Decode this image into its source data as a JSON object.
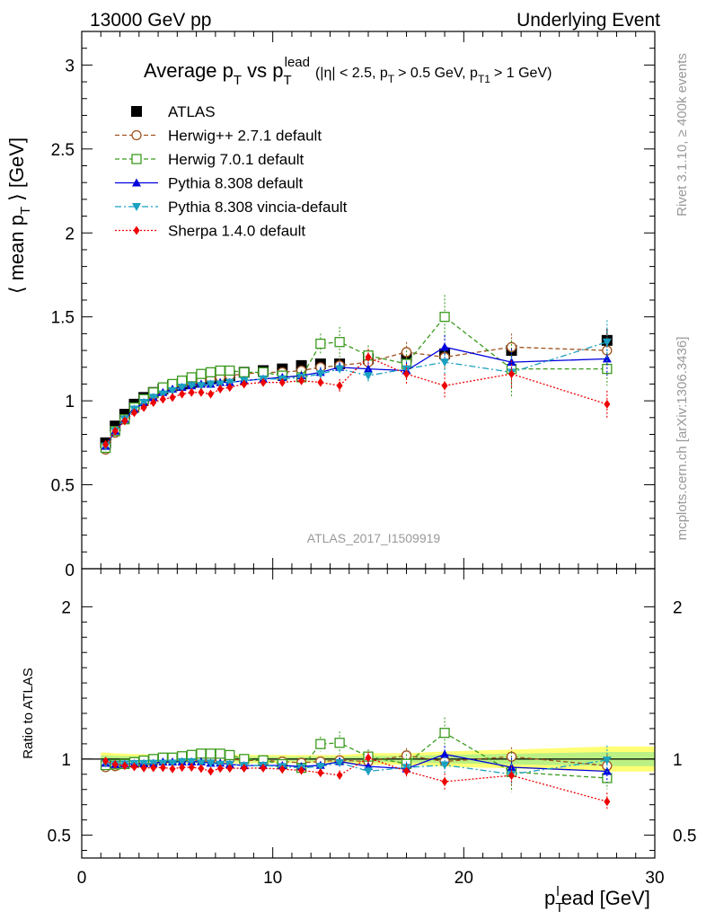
{
  "header": {
    "left": "13000 GeV pp",
    "right": "Underlying Event"
  },
  "side_labels": {
    "rivet": "Rivet 3.1.10, ≥ 400k events",
    "mcplots": "mcplots.cern.ch [arXiv:1306.3436]"
  },
  "colors": {
    "atlas": "#000000",
    "herwigpp": "#a0521e",
    "herwig7": "#3a9a1e",
    "pythia": "#0000dd",
    "vincia": "#1aa0c0",
    "sherpa": "#ee0000",
    "band_outer": "#ffff66",
    "band_inner": "#aaee88",
    "watermark": "#999999"
  },
  "chart_data": [
    {
      "type": "line",
      "title": "Average p_T vs p_T^lead",
      "title_main": "Average p",
      "title_sub1": "T",
      "title_vs": "vs p",
      "title_sub2": "T",
      "title_sup2": "lead",
      "title_cuts": "(|η| < 2.5, p",
      "title_cuts_sub": "T",
      "title_cuts2": "> 0.5 GeV, p",
      "title_cuts2_sub": "T1",
      "title_cuts3": "> 1 GeV)",
      "ylabel_pre": "⟨ mean p",
      "ylabel_sub": "T",
      "ylabel_post": "⟩ [GeV]",
      "watermark": "ATLAS_2017_I1509919",
      "xlim": [
        0,
        30
      ],
      "ylim": [
        0,
        3.2
      ],
      "yticks": [
        0,
        0.5,
        1,
        1.5,
        2,
        2.5,
        3
      ],
      "ytick_labels": [
        "0",
        "0.5",
        "1",
        "1.5",
        "2",
        "2.5",
        "3"
      ],
      "legend": [
        {
          "key": "atlas",
          "label": "ATLAS"
        },
        {
          "key": "herwigpp",
          "label": "Herwig++ 2.7.1 default"
        },
        {
          "key": "herwig7",
          "label": "Herwig 7.0.1 default"
        },
        {
          "key": "pythia",
          "label": "Pythia 8.308 default"
        },
        {
          "key": "vincia",
          "label": "Pythia 8.308 vincia-default"
        },
        {
          "key": "sherpa",
          "label": "Sherpa 1.4.0 default"
        }
      ],
      "x": [
        1.25,
        1.75,
        2.25,
        2.75,
        3.25,
        3.75,
        4.25,
        4.75,
        5.25,
        5.75,
        6.25,
        6.75,
        7.25,
        7.75,
        8.5,
        9.5,
        10.5,
        11.5,
        12.5,
        13.5,
        15,
        17,
        19,
        22.5,
        27.5
      ],
      "series": [
        {
          "key": "atlas",
          "name": "ATLAS",
          "marker": "square",
          "line": "none",
          "values": [
            0.75,
            0.85,
            0.92,
            0.98,
            1.02,
            1.05,
            1.07,
            1.09,
            1.1,
            1.11,
            1.12,
            1.13,
            1.14,
            1.15,
            1.17,
            1.18,
            1.19,
            1.21,
            1.22,
            1.22,
            1.25,
            1.26,
            1.28,
            1.3,
            1.36
          ],
          "errors": [
            0.02,
            0.02,
            0.02,
            0.02,
            0.02,
            0.02,
            0.02,
            0.02,
            0.02,
            0.02,
            0.02,
            0.02,
            0.02,
            0.02,
            0.02,
            0.02,
            0.02,
            0.02,
            0.02,
            0.02,
            0.03,
            0.03,
            0.04,
            0.05,
            0.07
          ]
        },
        {
          "key": "herwigpp",
          "name": "Herwig++ 2.7.1 default",
          "marker": "circle-open",
          "line": "dashed",
          "values": [
            0.71,
            0.81,
            0.89,
            0.95,
            0.99,
            1.03,
            1.06,
            1.08,
            1.1,
            1.11,
            1.12,
            1.13,
            1.14,
            1.15,
            1.16,
            1.17,
            1.17,
            1.18,
            1.2,
            1.21,
            1.23,
            1.29,
            1.26,
            1.32,
            1.3
          ],
          "errors": [
            0.01,
            0.01,
            0.01,
            0.01,
            0.01,
            0.01,
            0.01,
            0.01,
            0.01,
            0.01,
            0.01,
            0.01,
            0.01,
            0.01,
            0.02,
            0.02,
            0.02,
            0.03,
            0.03,
            0.04,
            0.05,
            0.06,
            0.07,
            0.08,
            0.1
          ]
        },
        {
          "key": "herwig7",
          "name": "Herwig 7.0.1 default",
          "marker": "square-open",
          "line": "dashed",
          "values": [
            0.72,
            0.82,
            0.89,
            0.96,
            1.01,
            1.05,
            1.08,
            1.1,
            1.12,
            1.14,
            1.16,
            1.17,
            1.18,
            1.18,
            1.17,
            1.17,
            1.15,
            1.14,
            1.34,
            1.35,
            1.27,
            1.22,
            1.5,
            1.19,
            1.19
          ],
          "errors": [
            0.01,
            0.01,
            0.01,
            0.01,
            0.01,
            0.01,
            0.01,
            0.01,
            0.01,
            0.01,
            0.01,
            0.01,
            0.02,
            0.02,
            0.02,
            0.03,
            0.03,
            0.04,
            0.06,
            0.09,
            0.06,
            0.08,
            0.13,
            0.17,
            0.1
          ]
        },
        {
          "key": "pythia",
          "name": "Pythia 8.308 default",
          "marker": "triangle-up",
          "line": "solid",
          "values": [
            0.73,
            0.82,
            0.89,
            0.95,
            0.99,
            1.02,
            1.05,
            1.07,
            1.08,
            1.09,
            1.1,
            1.1,
            1.11,
            1.11,
            1.12,
            1.13,
            1.14,
            1.15,
            1.17,
            1.2,
            1.19,
            1.18,
            1.32,
            1.23,
            1.25
          ],
          "errors": [
            0.01,
            0.01,
            0.01,
            0.01,
            0.01,
            0.01,
            0.01,
            0.01,
            0.01,
            0.01,
            0.01,
            0.01,
            0.01,
            0.01,
            0.02,
            0.02,
            0.02,
            0.02,
            0.03,
            0.03,
            0.04,
            0.05,
            0.07,
            0.08,
            0.1
          ]
        },
        {
          "key": "vincia",
          "name": "Pythia 8.308 vincia-default",
          "marker": "triangle-down",
          "line": "dashdot",
          "values": [
            0.73,
            0.82,
            0.89,
            0.95,
            0.99,
            1.02,
            1.04,
            1.06,
            1.08,
            1.09,
            1.09,
            1.1,
            1.1,
            1.11,
            1.12,
            1.13,
            1.13,
            1.14,
            1.16,
            1.19,
            1.15,
            1.19,
            1.23,
            1.17,
            1.35
          ],
          "errors": [
            0.01,
            0.01,
            0.01,
            0.01,
            0.01,
            0.01,
            0.01,
            0.01,
            0.01,
            0.01,
            0.01,
            0.01,
            0.01,
            0.01,
            0.02,
            0.02,
            0.02,
            0.02,
            0.03,
            0.03,
            0.04,
            0.05,
            0.07,
            0.09,
            0.13
          ]
        },
        {
          "key": "sherpa",
          "name": "Sherpa 1.4.0 default",
          "marker": "diamond",
          "line": "dotted",
          "values": [
            0.74,
            0.82,
            0.88,
            0.93,
            0.96,
            0.99,
            1.01,
            1.02,
            1.04,
            1.05,
            1.05,
            1.04,
            1.07,
            1.08,
            1.1,
            1.11,
            1.11,
            1.12,
            1.11,
            1.09,
            1.26,
            1.16,
            1.09,
            1.16,
            0.98
          ],
          "errors": [
            0.01,
            0.01,
            0.01,
            0.01,
            0.01,
            0.01,
            0.01,
            0.01,
            0.01,
            0.01,
            0.01,
            0.02,
            0.02,
            0.02,
            0.02,
            0.02,
            0.02,
            0.03,
            0.03,
            0.04,
            0.05,
            0.06,
            0.07,
            0.08,
            0.08
          ]
        }
      ]
    },
    {
      "type": "line",
      "title": "Ratio to ATLAS",
      "ylabel": "Ratio to ATLAS",
      "xlabel_main": "p",
      "xlabel_sub": "T",
      "xlabel_sup": "l",
      "xlabel_post": "ead [GeV]",
      "xlim": [
        0,
        30
      ],
      "ylim": [
        0.35,
        2.25
      ],
      "xticks": [
        0,
        10,
        20,
        30
      ],
      "xtick_labels": [
        "0",
        "10",
        "20",
        "30"
      ],
      "yticks": [
        0.5,
        1,
        2
      ],
      "ytick_labels": [
        "0.5",
        "1",
        "2"
      ]
    }
  ]
}
